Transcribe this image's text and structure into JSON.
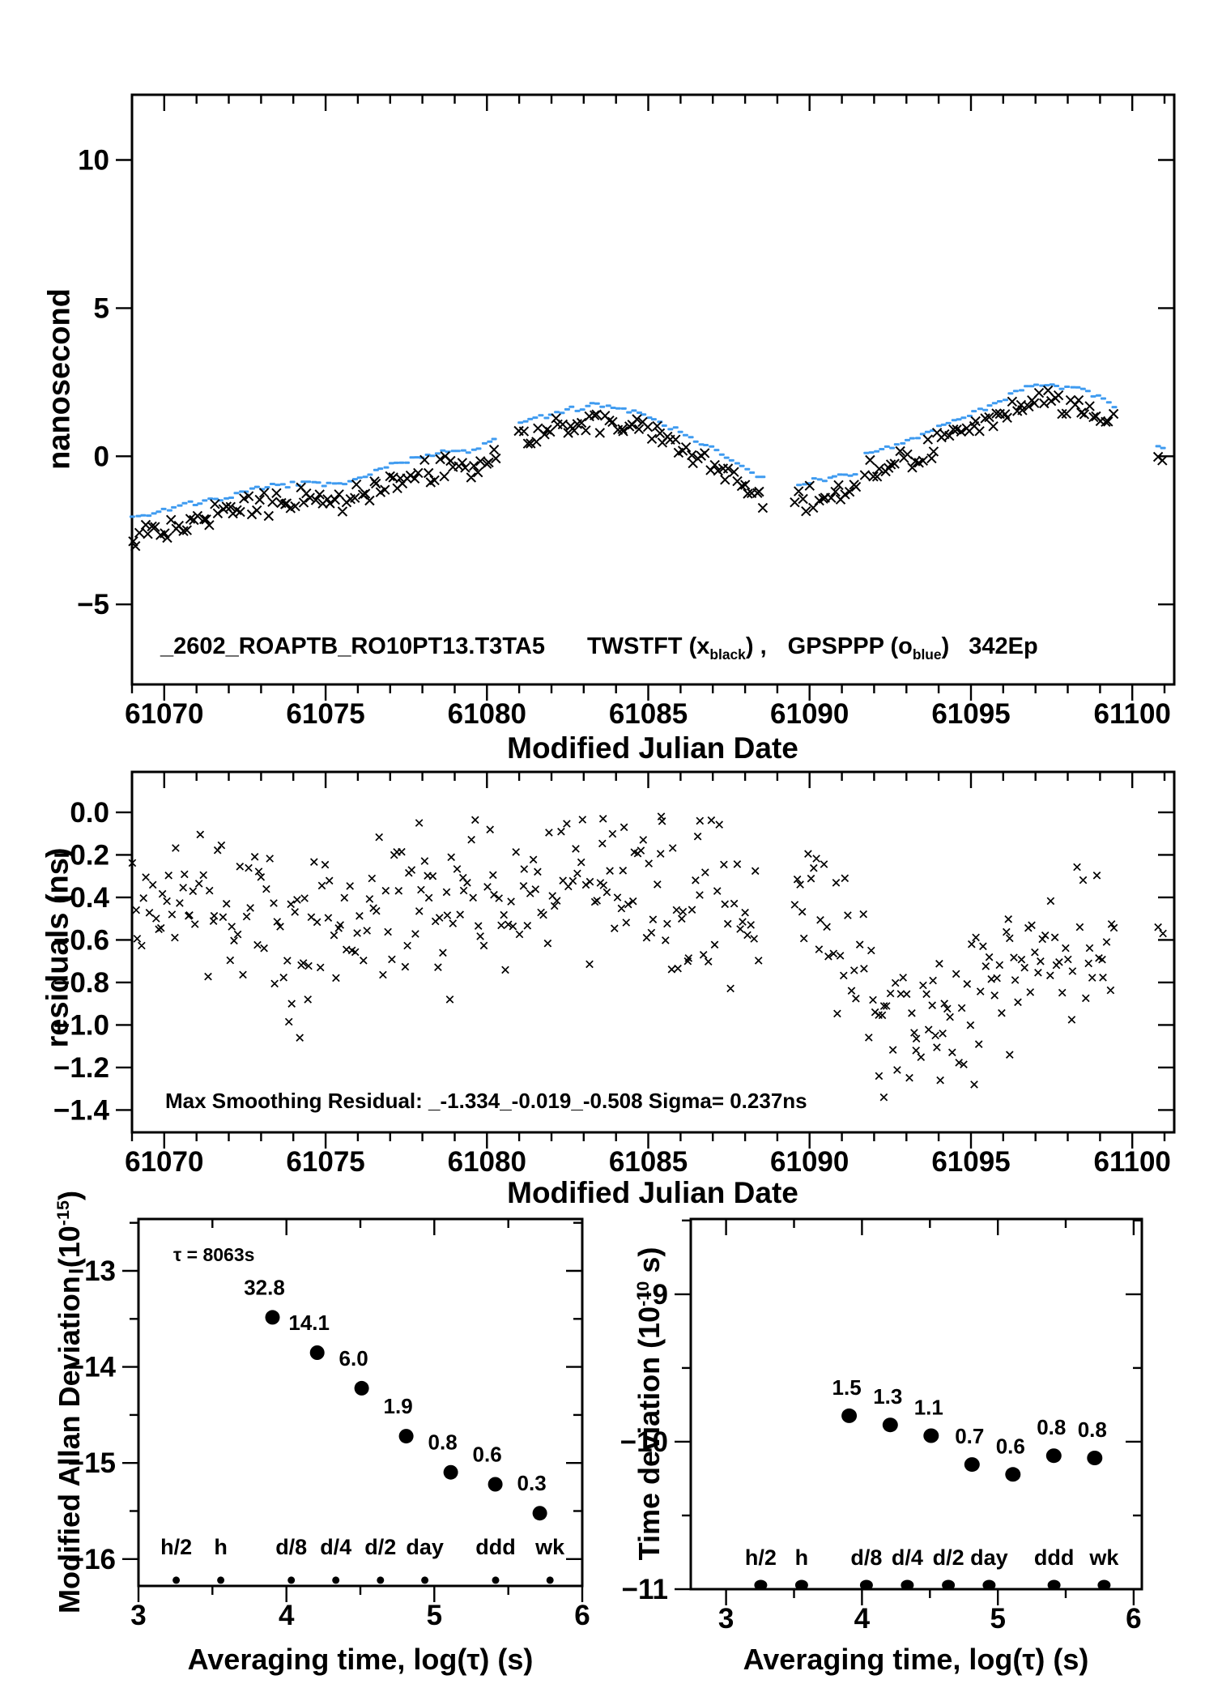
{
  "figure": {
    "background": "#ffffff"
  },
  "colors": {
    "data_black": "#000000",
    "data_blue": "#3f9bf0",
    "label_red": "#ff0000",
    "axis": "#000000"
  },
  "top_panel": {
    "ylabel": "nanosecond",
    "xlabel": "Modified Julian Date",
    "title": {
      "run_id": "_2602_ROAPTB_RO10PT13.T3TA5",
      "tw_label": "TWSTFT (x",
      "tw_sub": "black",
      "tw_close": ") ,",
      "gps_label": "GPSPPP (o",
      "gps_sub": "blue",
      "gps_close": ")",
      "epochs": "342Ep"
    }
  },
  "mid_panel": {
    "ylabel": "residuals (ns)",
    "xlabel": "Modified Julian Date",
    "annotation": "Max Smoothing Residual: _-1.334_-0.019_-0.508  Sigma= 0.237ns"
  },
  "bl_panel": {
    "ylabel_base": "Modified Allan Deviation (10",
    "ylabel_sup": "-15",
    "ylabel_end": ")",
    "xlabel": "Averaging time, log(τ) (s)",
    "annotation": "τ = 8063s"
  },
  "br_panel": {
    "ylabel_base": "Time deviation (10",
    "ylabel_sup": "-10",
    "ylabel_end": " s)",
    "xlabel": "Averaging time, log(τ) (s)"
  },
  "chart_data": [
    {
      "id": "top",
      "type": "scatter",
      "title": "_2602_ROAPTB_RO10PT13.T3TA5  TWSTFT (x_black) , GPSPPP (o_blue)  342Ep",
      "xlabel": "Modified Julian Date",
      "ylabel": "nanosecond",
      "xlim": [
        61069,
        61101.3
      ],
      "ylim": [
        -7.7,
        12.2
      ],
      "xticks": [
        61070,
        61075,
        61080,
        61085,
        61090,
        61095,
        61100
      ],
      "yticks": [
        -5,
        0,
        5,
        10
      ],
      "x_minor_step": 1,
      "ytick_decimals": 0,
      "grid": false,
      "gaps": [
        [
          61080.36,
          61080.99
        ],
        [
          61088.61,
          61089.54
        ],
        [
          61091.51,
          61091.63
        ],
        [
          61099.46,
          61100.75
        ]
      ],
      "series": [
        {
          "name": "GPSPPP",
          "marker": "dash",
          "color_key": "data_blue",
          "step": 0.16,
          "jitter": 0.06,
          "xjitter": 0.02,
          "offset": 0,
          "trend": [
            [
              61069.0,
              -2.05
            ],
            [
              61069.6,
              -1.92
            ],
            [
              61070.0,
              -1.8
            ],
            [
              61070.6,
              -1.62
            ],
            [
              61071.2,
              -1.52
            ],
            [
              61071.8,
              -1.4
            ],
            [
              61072.4,
              -1.25
            ],
            [
              61073.0,
              -1.1
            ],
            [
              61073.4,
              -1.0
            ],
            [
              61074.0,
              -0.95
            ],
            [
              61074.6,
              -0.92
            ],
            [
              61075.0,
              -0.96
            ],
            [
              61075.4,
              -1.0
            ],
            [
              61075.9,
              -0.78
            ],
            [
              61076.4,
              -0.52
            ],
            [
              61077.0,
              -0.3
            ],
            [
              61077.6,
              -0.12
            ],
            [
              61078.2,
              0.02
            ],
            [
              61078.8,
              0.14
            ],
            [
              61079.2,
              0.18
            ],
            [
              61079.5,
              0.14
            ],
            [
              61080.0,
              0.42
            ],
            [
              61080.35,
              0.68
            ],
            [
              61081.0,
              1.08
            ],
            [
              61081.6,
              1.32
            ],
            [
              61082.2,
              1.46
            ],
            [
              61082.8,
              1.62
            ],
            [
              61083.2,
              1.74
            ],
            [
              61083.7,
              1.72
            ],
            [
              61084.2,
              1.62
            ],
            [
              61084.7,
              1.48
            ],
            [
              61085.2,
              1.25
            ],
            [
              61085.7,
              1.0
            ],
            [
              61086.2,
              0.72
            ],
            [
              61086.7,
              0.42
            ],
            [
              61087.2,
              0.1
            ],
            [
              61087.7,
              -0.22
            ],
            [
              61088.1,
              -0.48
            ],
            [
              61088.6,
              -0.8
            ],
            [
              61089.55,
              -1.0
            ],
            [
              61090.0,
              -0.88
            ],
            [
              61090.5,
              -0.74
            ],
            [
              61091.0,
              -0.66
            ],
            [
              61091.5,
              -0.6
            ],
            [
              61091.64,
              0.02
            ],
            [
              61092.0,
              0.12
            ],
            [
              61092.5,
              0.28
            ],
            [
              61093.0,
              0.52
            ],
            [
              61093.5,
              0.74
            ],
            [
              61094.0,
              0.98
            ],
            [
              61094.5,
              1.2
            ],
            [
              61095.0,
              1.44
            ],
            [
              61095.5,
              1.68
            ],
            [
              61096.0,
              1.94
            ],
            [
              61096.5,
              2.18
            ],
            [
              61096.9,
              2.38
            ],
            [
              61097.3,
              2.44
            ],
            [
              61097.8,
              2.34
            ],
            [
              61098.3,
              2.24
            ],
            [
              61098.7,
              2.1
            ],
            [
              61099.1,
              1.9
            ],
            [
              61099.45,
              1.66
            ]
          ],
          "extra_points": [
            [
              61100.8,
              0.34
            ],
            [
              61100.95,
              0.28
            ]
          ]
        },
        {
          "name": "TWSTFT",
          "marker": "x",
          "color_key": "data_black",
          "step": 0.12,
          "jitter": 0.27,
          "xjitter": 0.05,
          "offset": -0.55,
          "extra_points": [
            [
              61100.8,
              -0.02
            ],
            [
              61100.93,
              -0.14
            ]
          ]
        }
      ]
    },
    {
      "id": "mid",
      "type": "scatter",
      "title": "",
      "xlabel": "Modified Julian Date",
      "ylabel": "residuals (ns)",
      "annotation": "Max Smoothing Residual: _-1.334_-0.019_-0.508  Sigma= 0.237ns",
      "xlim": [
        61069,
        61101.3
      ],
      "ylim": [
        -1.505,
        0.19
      ],
      "xticks": [
        61070,
        61075,
        61080,
        61085,
        61090,
        61095,
        61100
      ],
      "yticks": [
        0,
        -0.2,
        -0.4,
        -0.6,
        -0.8,
        -1.0,
        -1.2,
        -1.4
      ],
      "x_minor_step": 1,
      "ytick_decimals": 1,
      "grid": false,
      "gaps": [
        [
          61088.45,
          61089.5
        ],
        [
          61099.5,
          61100.75
        ]
      ],
      "series": [
        {
          "name": "residuals",
          "marker": "x",
          "color_key": "data_black",
          "step": 0.085,
          "jitter": 0.23,
          "xjitter": 0.04,
          "offset": 0,
          "trend": [
            [
              61069,
              -0.38
            ],
            [
              61070,
              -0.42
            ],
            [
              61071,
              -0.45
            ],
            [
              61072,
              -0.44
            ],
            [
              61073,
              -0.52
            ],
            [
              61073.8,
              -0.62
            ],
            [
              61074.5,
              -0.55
            ],
            [
              61075,
              -0.5
            ],
            [
              61076,
              -0.47
            ],
            [
              61077,
              -0.44
            ],
            [
              61078,
              -0.42
            ],
            [
              61079,
              -0.44
            ],
            [
              61080,
              -0.4
            ],
            [
              61081,
              -0.38
            ],
            [
              61082,
              -0.37
            ],
            [
              61083,
              -0.31
            ],
            [
              61084,
              -0.33
            ],
            [
              61085,
              -0.36
            ],
            [
              61086,
              -0.38
            ],
            [
              61087,
              -0.44
            ],
            [
              61088.4,
              -0.5
            ],
            [
              61089.5,
              -0.42
            ],
            [
              61090.5,
              -0.52
            ],
            [
              61091.5,
              -0.72
            ],
            [
              61092.5,
              -0.95
            ],
            [
              61093.5,
              -0.96
            ],
            [
              61094.5,
              -0.9
            ],
            [
              61095.5,
              -0.82
            ],
            [
              61096.5,
              -0.72
            ],
            [
              61097.5,
              -0.66
            ],
            [
              61098.5,
              -0.64
            ],
            [
              61099.5,
              -0.62
            ]
          ],
          "extra_points": [
            [
              61074.2,
              -1.06
            ],
            [
              61073.95,
              -0.9
            ],
            [
              61074.45,
              -0.88
            ],
            [
              61077.9,
              -0.05
            ],
            [
              61078.85,
              -0.88
            ],
            [
              61083.6,
              -0.03
            ],
            [
              61084.25,
              -0.07
            ],
            [
              61085.4,
              -0.02
            ],
            [
              61086.6,
              -0.04
            ],
            [
              61092.3,
              -1.34
            ],
            [
              61092.15,
              -1.24
            ],
            [
              61094.05,
              -1.26
            ],
            [
              61095.1,
              -1.28
            ],
            [
              61093.3,
              -1.12
            ],
            [
              61093.9,
              -1.05
            ],
            [
              61096.2,
              -1.14
            ],
            [
              61100.8,
              -0.54
            ],
            [
              61100.95,
              -0.57
            ]
          ]
        }
      ]
    },
    {
      "id": "mdev",
      "type": "scatter",
      "title": "",
      "xlabel": "Averaging time, log(τ) (s)",
      "ylabel": "Modified Allan Deviation (10^-15)",
      "annotation": "τ = 8063s",
      "xlim": [
        3,
        6
      ],
      "ylim": [
        -16.28,
        -12.46
      ],
      "xticks": [
        3,
        4,
        5,
        6
      ],
      "yticks": [
        -13,
        -14,
        -15,
        -16
      ],
      "x_minor_step": 0.5,
      "y_minor_step": 0.5,
      "ytick_decimals": 0,
      "grid": false,
      "points": {
        "log_tau": [
          3.906,
          4.208,
          4.509,
          4.81,
          5.111,
          5.412,
          5.713
        ],
        "log_dev": [
          -13.484,
          -13.851,
          -14.222,
          -14.721,
          -15.097,
          -15.222,
          -15.523
        ],
        "value_labels": [
          "32.8",
          "14.1",
          "6.0",
          "1.9",
          "0.8",
          "0.6",
          "0.3"
        ]
      },
      "tau_marks": {
        "labels": [
          "h/2",
          "h",
          "d/8",
          "d/4",
          "d/2",
          "day",
          "ddd",
          "wk"
        ],
        "log_tau": [
          3.255,
          3.556,
          4.033,
          4.334,
          4.636,
          4.936,
          5.414,
          5.782
        ],
        "y": -16.22
      }
    },
    {
      "id": "tdev",
      "type": "scatter",
      "title": "",
      "xlabel": "Averaging time, log(τ) (s)",
      "ylabel": "Time deviation (10^-10 s)",
      "xlim": [
        2.74,
        6.06
      ],
      "ylim": [
        -11.0,
        -8.49
      ],
      "xticks": [
        3,
        4,
        5,
        6
      ],
      "yticks": [
        -9,
        -10,
        -11
      ],
      "x_minor_step": 0.5,
      "y_minor_step": 0.5,
      "ytick_decimals": 0,
      "grid": false,
      "points": {
        "log_tau": [
          3.906,
          4.208,
          4.509,
          4.81,
          5.111,
          5.412,
          5.713
        ],
        "log_dev": [
          -9.824,
          -9.886,
          -9.959,
          -10.155,
          -10.222,
          -10.095,
          -10.11
        ],
        "value_labels": [
          "1.5",
          "1.3",
          "1.1",
          "0.7",
          "0.6",
          "0.8",
          "0.8"
        ]
      },
      "tau_marks": {
        "labels": [
          "h/2",
          "h",
          "d/8",
          "d/4",
          "d/2",
          "day",
          "ddd",
          "wk"
        ],
        "log_tau": [
          3.255,
          3.556,
          4.033,
          4.334,
          4.636,
          4.936,
          5.414,
          5.782
        ],
        "y": -11.0
      }
    }
  ],
  "render_hints": {
    "seeds": {
      "top_GPSPPP": 7,
      "top_TWSTFT": 13,
      "mid_residuals": 99
    }
  }
}
